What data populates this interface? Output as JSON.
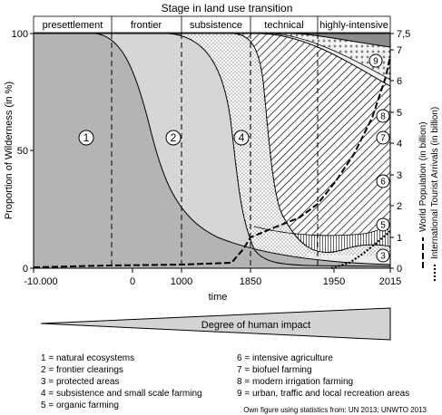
{
  "title": "Stage in land use transition",
  "stages": [
    {
      "label": "presettlement"
    },
    {
      "label": "frontier"
    },
    {
      "label": "subsistence"
    },
    {
      "label": "technical"
    },
    {
      "label": "highly-intensive"
    }
  ],
  "x_axis": {
    "label": "time",
    "ticks": [
      "-10.000",
      "0",
      "1000",
      "1850",
      "1950",
      "2015"
    ]
  },
  "y_left": {
    "label": "Proportion of Wilderness (in %)",
    "ticks": [
      "0",
      "50",
      "100"
    ]
  },
  "y_right": {
    "ticks": [
      "0",
      "1",
      "2",
      "3",
      "4",
      "5",
      "6",
      "7",
      "7,5"
    ],
    "label_population": "World Population (in billion)",
    "label_tourists": "International Tourist Arrivals (in billion)"
  },
  "regions": [
    {
      "id": "1",
      "color": "#b4b4b4"
    },
    {
      "id": "2",
      "color": "#d4d4d4"
    },
    {
      "id": "3",
      "color": "#ececec"
    },
    {
      "id": "4",
      "color": "#ffffff"
    },
    {
      "id": "5",
      "color": "#e6e6e6"
    },
    {
      "id": "6",
      "color": "#ffffff"
    },
    {
      "id": "7",
      "color": "#f0f0f0"
    },
    {
      "id": "8",
      "color": "#ffffff"
    },
    {
      "id": "9",
      "color": "#8c8c8c"
    }
  ],
  "impact_label": "Degree of human impact",
  "legend": [
    "1 = natural ecosystems",
    "2 = frontier clearings",
    "3 = protected areas",
    "4 = subsistence and small scale farming",
    "5 = organic farming",
    "6 = intensive agriculture",
    "7 = biofuel farming",
    "8 = modern irrigation farming",
    "9 = urban, traffic and local recreation areas"
  ],
  "source": "Own figure using statistics from: UN 2013; UNWTO 2013"
}
